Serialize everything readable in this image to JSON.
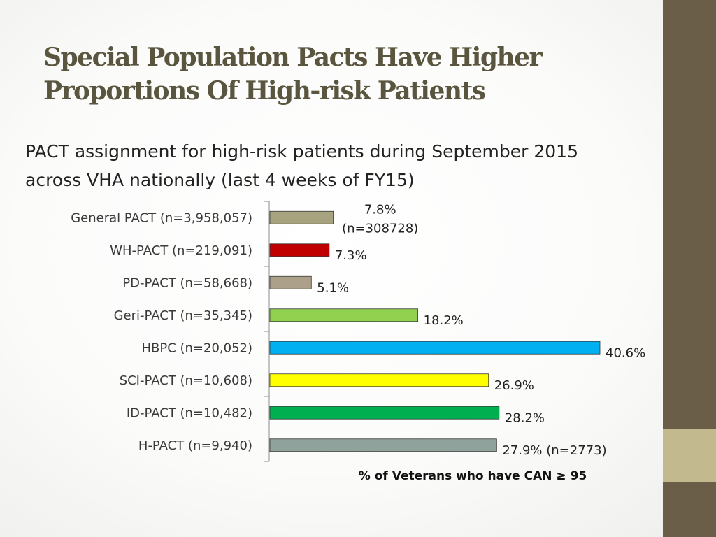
{
  "slide": {
    "title_line1": "Special Population Pacts Have Higher",
    "title_line2": "Proportions Of High-risk Patients",
    "subtitle_line1": "PACT assignment for high-risk patients during September 2015",
    "subtitle_line2": "across VHA nationally (last 4 weeks of FY15)"
  },
  "colors": {
    "side_strip": "#6b5e48",
    "side_accent": "#c3b98e"
  },
  "chart_data": {
    "type": "bar",
    "orientation": "horizontal",
    "title": "",
    "xlabel": "% of Veterans who have CAN ≥ 95",
    "ylabel": "",
    "xlim": [
      0,
      40.6
    ],
    "grid": false,
    "legend": "none",
    "categories": [
      "General PACT (n=3,958,057)",
      "WH-PACT (n=219,091)",
      "PD-PACT (n=58,668)",
      "Geri-PACT (n=35,345)",
      "HBPC (n=20,052)",
      "SCI-PACT (n=10,608)",
      "ID-PACT (n=10,482)",
      "H-PACT (n=9,940)"
    ],
    "values": [
      7.8,
      7.3,
      5.1,
      18.2,
      40.6,
      26.9,
      28.2,
      27.9
    ],
    "value_labels": [
      [
        "7.8%",
        "(n=308728)"
      ],
      [
        "7.3%"
      ],
      [
        "5.1%"
      ],
      [
        "18.2%"
      ],
      [
        "40.6%"
      ],
      [
        "26.9%"
      ],
      [
        "28.2%"
      ],
      [
        "27.9% (n=2773)"
      ]
    ],
    "bar_colors": [
      "#a7a37e",
      "#c00000",
      "#ada08a",
      "#92d050",
      "#00b0f0",
      "#ffff00",
      "#00b050",
      "#8fa29b"
    ]
  }
}
